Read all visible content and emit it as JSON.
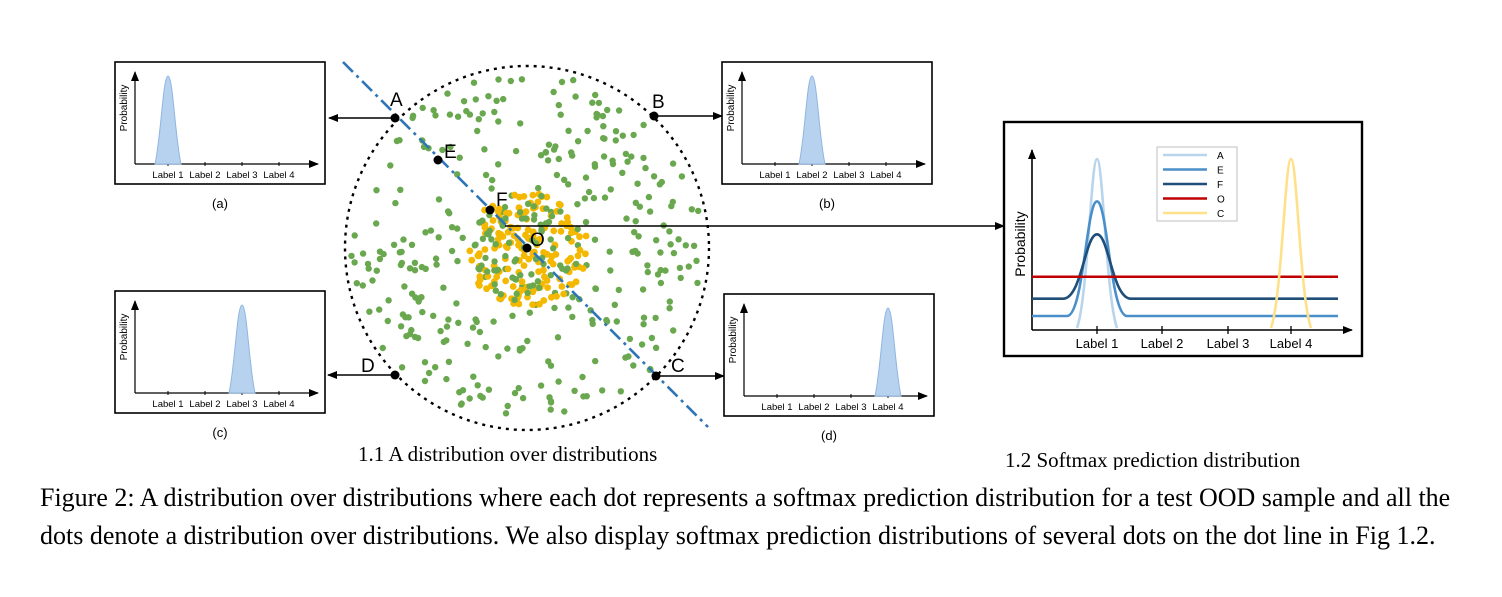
{
  "figure": {
    "subfig_left_caption": "1.1 A distribution over distributions",
    "subfig_right_caption": "1.2 Softmax prediction distribution",
    "caption": "Figure 2: A distribution over distributions where each dot represents a softmax prediction distribution for a test OOD sample and all the dots denote a distribution over distributions. We also display softmax prediction distributions of several dots on the dot line in Fig 1.2."
  },
  "points": [
    {
      "name": "A",
      "label": "A"
    },
    {
      "name": "B",
      "label": "B"
    },
    {
      "name": "C",
      "label": "C"
    },
    {
      "name": "D",
      "label": "D"
    },
    {
      "name": "E",
      "label": "E"
    },
    {
      "name": "F",
      "label": "F"
    },
    {
      "name": "O",
      "label": "O"
    }
  ],
  "colors": {
    "dot_green": "#6aa84f",
    "dot_yellow": "#f5b800",
    "dash_line": "#2e75b6",
    "small_fill": "#b7d2ee",
    "small_stroke": "#8fb6e0",
    "curve_A": "#b9d5ec",
    "curve_E": "#4a8fc9",
    "curve_F": "#1f4e79",
    "curve_O": "#c00000",
    "curve_C": "#ffe08a"
  },
  "small_charts": [
    {
      "id": "a",
      "caption": "(a)",
      "ylabel": "Probability",
      "labels": [
        "Label 1",
        "Label 2",
        "Label 3",
        "Label 4"
      ],
      "peak_label_index": 0
    },
    {
      "id": "b",
      "caption": "(b)",
      "ylabel": "Probability",
      "labels": [
        "Label 1",
        "Label 2",
        "Label 3",
        "Label 4"
      ],
      "peak_label_index": 1
    },
    {
      "id": "c",
      "caption": "(c)",
      "ylabel": "Probability",
      "labels": [
        "Label 1",
        "Label 2",
        "Label 3",
        "Label 4"
      ],
      "peak_label_index": 2
    },
    {
      "id": "d",
      "caption": "(d)",
      "ylabel": "Probability",
      "labels": [
        "Label 1",
        "Label 2",
        "Label 3",
        "Label 4"
      ],
      "peak_label_index": 3
    }
  ],
  "chart_data": {
    "type": "line",
    "ylabel": "Probability",
    "categories": [
      "Label 1",
      "Label 2",
      "Label 3",
      "Label 4"
    ],
    "legend": [
      "A",
      "E",
      "F",
      "O",
      "C"
    ],
    "legend_position": "top-center",
    "series": [
      {
        "name": "A",
        "peak_at": "Label 1",
        "peak": 1.0,
        "baseline": 0.0
      },
      {
        "name": "E",
        "peak_at": "Label 1",
        "peak": 0.73,
        "baseline": 0.0
      },
      {
        "name": "F",
        "peak_at": "Label 1",
        "peak": 0.52,
        "baseline": 0.11
      },
      {
        "name": "O",
        "peak_at": "none",
        "peak": 0.25,
        "baseline": 0.25
      },
      {
        "name": "C",
        "peak_at": "Label 4",
        "peak": 1.0,
        "baseline": 0.0
      }
    ]
  }
}
